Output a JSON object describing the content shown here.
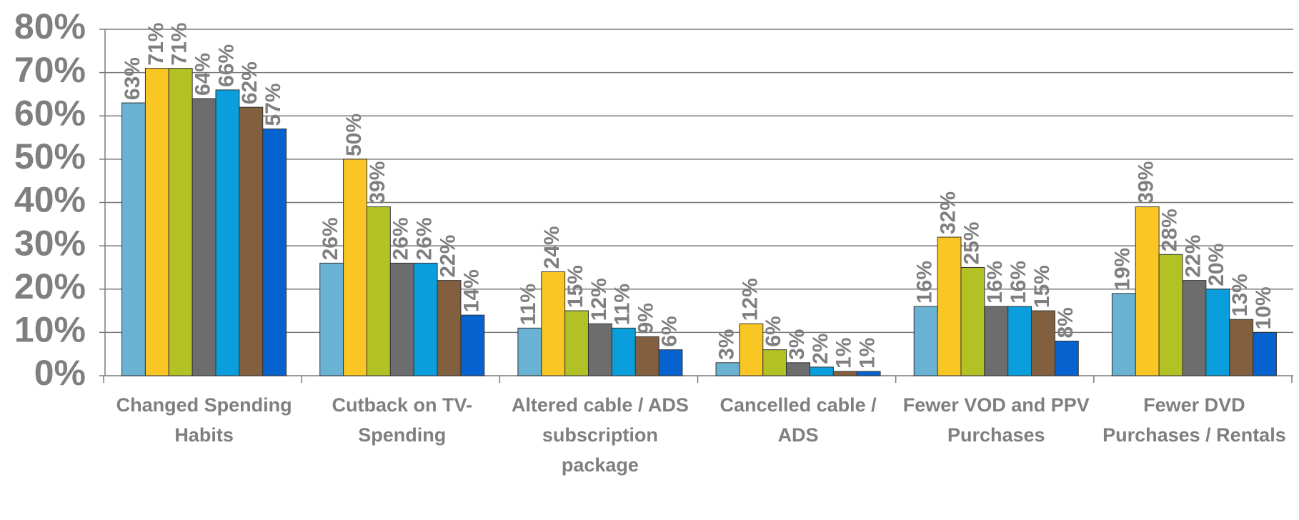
{
  "chart_data": {
    "type": "bar",
    "categories": [
      "Changed Spending Habits",
      "Cutback on TV-Spending",
      "Altered cable / ADS subscription package",
      "Cancelled cable / ADS",
      "Fewer VOD and PPV Purchases",
      "Fewer DVD Purchases / Rentals"
    ],
    "series": [
      {
        "color": "#6ab2d4",
        "values": [
          63,
          26,
          11,
          3,
          16,
          19
        ],
        "value_labels": [
          "63%",
          "26%",
          "11%",
          "3%",
          "16%",
          "19%"
        ]
      },
      {
        "color": "#f9c623",
        "values": [
          71,
          50,
          24,
          12,
          32,
          39
        ],
        "value_labels": [
          "71%",
          "50%",
          "24%",
          "12%",
          "32%",
          "39%"
        ]
      },
      {
        "color": "#b2c225",
        "values": [
          71,
          39,
          15,
          6,
          25,
          28
        ],
        "value_labels": [
          "71%",
          "39%",
          "15%",
          "6%",
          "25%",
          "28%"
        ]
      },
      {
        "color": "#6d6d6d",
        "values": [
          64,
          26,
          12,
          3,
          16,
          22
        ],
        "value_labels": [
          "64%",
          "26%",
          "12%",
          "3%",
          "16%",
          "22%"
        ]
      },
      {
        "color": "#0a9fdc",
        "values": [
          66,
          26,
          11,
          2,
          16,
          20
        ],
        "value_labels": [
          "66%",
          "26%",
          "11%",
          "2%",
          "16%",
          "20%"
        ]
      },
      {
        "color": "#82603f",
        "values": [
          62,
          22,
          9,
          1,
          15,
          13
        ],
        "value_labels": [
          "62%",
          "22%",
          "9%",
          "1%",
          "15%",
          "13%"
        ]
      },
      {
        "color": "#0562cf",
        "values": [
          57,
          14,
          6,
          1,
          8,
          10
        ],
        "value_labels": [
          "57%",
          "14%",
          "6%",
          "1%",
          "8%",
          "10%"
        ]
      }
    ],
    "ylim": [
      0,
      80
    ],
    "yticks": [
      {
        "value": 0,
        "label": "0%"
      },
      {
        "value": 10,
        "label": "10%"
      },
      {
        "value": 20,
        "label": "20%"
      },
      {
        "value": 30,
        "label": "30%"
      },
      {
        "value": 40,
        "label": "40%"
      },
      {
        "value": 50,
        "label": "50%"
      },
      {
        "value": 60,
        "label": "60%"
      },
      {
        "value": 70,
        "label": "70%"
      },
      {
        "value": 80,
        "label": "80%"
      }
    ],
    "grid": true
  }
}
